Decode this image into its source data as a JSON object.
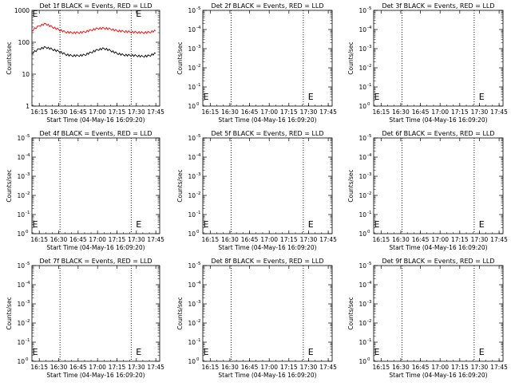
{
  "chart_data": [
    {
      "title": "Det 1f BLACK = Events, RED = LLD",
      "xlabel": "Start Time (04-May-16 16:09:20)",
      "ylabel": "Counts/sec",
      "xticks": [
        "16:15",
        "16:30",
        "16:45",
        "17:00",
        "17:15",
        "17:30",
        "17:45"
      ],
      "yticks": [
        "1",
        "10",
        "100",
        "1000"
      ],
      "ytick_style": "plain",
      "yscale": "log",
      "ylim": [
        1,
        1000
      ],
      "vlines": [
        "16:31",
        "17:26"
      ],
      "markers": [
        {
          "x": "16:09",
          "label": "E"
        },
        {
          "x": "17:29",
          "label": "E"
        }
      ],
      "marker_y": 1000,
      "type": "line",
      "series": [
        {
          "name": "LLD",
          "color": "#ff0000",
          "x": [
            "16:09",
            "16:15",
            "16:20",
            "16:25",
            "16:30",
            "16:35",
            "16:40",
            "16:45",
            "16:50",
            "16:55",
            "17:00",
            "17:05",
            "17:10",
            "17:15",
            "17:20",
            "17:25",
            "17:30",
            "17:35",
            "17:40",
            "17:45"
          ],
          "values": [
            230,
            330,
            380,
            300,
            250,
            210,
            200,
            200,
            210,
            240,
            270,
            275,
            260,
            230,
            220,
            210,
            205,
            200,
            205,
            230
          ]
        },
        {
          "name": "Events",
          "color": "#000000",
          "x": [
            "16:09",
            "16:15",
            "16:20",
            "16:25",
            "16:30",
            "16:35",
            "16:40",
            "16:45",
            "16:50",
            "16:55",
            "17:00",
            "17:05",
            "17:10",
            "17:15",
            "17:20",
            "17:25",
            "17:30",
            "17:35",
            "17:40",
            "17:45"
          ],
          "values": [
            45,
            62,
            70,
            60,
            52,
            42,
            38,
            38,
            40,
            48,
            58,
            64,
            55,
            45,
            40,
            39,
            38,
            36,
            38,
            45
          ]
        }
      ]
    },
    {
      "title": "Det 2f BLACK = Events, RED = LLD",
      "xlabel": "Start Time (04-May-16 16:09:20)",
      "ylabel": "Counts/sec",
      "xticks": [
        "16:15",
        "16:30",
        "16:45",
        "17:00",
        "17:15",
        "17:30",
        "17:45"
      ],
      "yticks": [
        "10",
        "10",
        "10",
        "10",
        "10",
        "10"
      ],
      "ytick_exp": [
        "0",
        "-1",
        "-2",
        "-3",
        "-4",
        "-5"
      ],
      "ytick_style": "exp",
      "vlines": [
        "16:31",
        "17:26"
      ],
      "markers": [
        {
          "x": "16:09",
          "label": "E"
        },
        {
          "x": "17:29",
          "label": "E"
        }
      ],
      "marker_y_frac": 0.1,
      "type": "line",
      "series": []
    },
    {
      "title": "Det 3f BLACK = Events, RED = LLD",
      "xlabel": "Start Time (04-May-16 16:09:20)",
      "ylabel": "Counts/sec",
      "xticks": [
        "16:15",
        "16:30",
        "16:45",
        "17:00",
        "17:15",
        "17:30",
        "17:45"
      ],
      "yticks": [
        "10",
        "10",
        "10",
        "10",
        "10",
        "10"
      ],
      "ytick_exp": [
        "0",
        "-1",
        "-2",
        "-3",
        "-4",
        "-5"
      ],
      "ytick_style": "exp",
      "vlines": [
        "16:31",
        "17:26"
      ],
      "markers": [
        {
          "x": "16:09",
          "label": "E"
        },
        {
          "x": "17:29",
          "label": "E"
        }
      ],
      "marker_y_frac": 0.1,
      "type": "line",
      "series": []
    },
    {
      "title": "Det 4f BLACK = Events, RED = LLD",
      "xlabel": "Start Time (04-May-16 16:09:20)",
      "ylabel": "Counts/sec",
      "xticks": [
        "16:15",
        "16:30",
        "16:45",
        "17:00",
        "17:15",
        "17:30",
        "17:45"
      ],
      "yticks": [
        "10",
        "10",
        "10",
        "10",
        "10",
        "10"
      ],
      "ytick_exp": [
        "0",
        "-1",
        "-2",
        "-3",
        "-4",
        "-5"
      ],
      "ytick_style": "exp",
      "vlines": [
        "16:31",
        "17:26"
      ],
      "markers": [
        {
          "x": "16:09",
          "label": "E"
        },
        {
          "x": "17:29",
          "label": "E"
        }
      ],
      "marker_y_frac": 0.1,
      "type": "line",
      "series": []
    },
    {
      "title": "Det 5f BLACK = Events, RED = LLD",
      "xlabel": "Start Time (04-May-16 16:09:20)",
      "ylabel": "Counts/sec",
      "xticks": [
        "16:15",
        "16:30",
        "16:45",
        "17:00",
        "17:15",
        "17:30",
        "17:45"
      ],
      "yticks": [
        "10",
        "10",
        "10",
        "10",
        "10",
        "10"
      ],
      "ytick_exp": [
        "0",
        "-1",
        "-2",
        "-3",
        "-4",
        "-5"
      ],
      "ytick_style": "exp",
      "vlines": [
        "16:31",
        "17:26"
      ],
      "markers": [
        {
          "x": "16:09",
          "label": "E"
        },
        {
          "x": "17:29",
          "label": "E"
        }
      ],
      "marker_y_frac": 0.1,
      "type": "line",
      "series": []
    },
    {
      "title": "Det 6f BLACK = Events, RED = LLD",
      "xlabel": "Start Time (04-May-16 16:09:20)",
      "ylabel": "Counts/sec",
      "xticks": [
        "16:15",
        "16:30",
        "16:45",
        "17:00",
        "17:15",
        "17:30",
        "17:45"
      ],
      "yticks": [
        "10",
        "10",
        "10",
        "10",
        "10",
        "10"
      ],
      "ytick_exp": [
        "0",
        "-1",
        "-2",
        "-3",
        "-4",
        "-5"
      ],
      "ytick_style": "exp",
      "vlines": [
        "16:31",
        "17:26"
      ],
      "markers": [
        {
          "x": "16:09",
          "label": "E"
        },
        {
          "x": "17:29",
          "label": "E"
        }
      ],
      "marker_y_frac": 0.1,
      "type": "line",
      "series": []
    },
    {
      "title": "Det 7f BLACK = Events, RED = LLD",
      "xlabel": "Start Time (04-May-16 16:09:20)",
      "ylabel": "Counts/sec",
      "xticks": [
        "16:15",
        "16:30",
        "16:45",
        "17:00",
        "17:15",
        "17:30",
        "17:45"
      ],
      "yticks": [
        "10",
        "10",
        "10",
        "10",
        "10",
        "10"
      ],
      "ytick_exp": [
        "0",
        "-1",
        "-2",
        "-3",
        "-4",
        "-5"
      ],
      "ytick_style": "exp",
      "vlines": [
        "16:31",
        "17:26"
      ],
      "markers": [
        {
          "x": "16:09",
          "label": "E"
        },
        {
          "x": "17:29",
          "label": "E"
        }
      ],
      "marker_y_frac": 0.1,
      "type": "line",
      "series": []
    },
    {
      "title": "Det 8f BLACK = Events, RED = LLD",
      "xlabel": "Start Time (04-May-16 16:09:20)",
      "ylabel": "Counts/sec",
      "xticks": [
        "16:15",
        "16:30",
        "16:45",
        "17:00",
        "17:15",
        "17:30",
        "17:45"
      ],
      "yticks": [
        "10",
        "10",
        "10",
        "10",
        "10",
        "10"
      ],
      "ytick_exp": [
        "0",
        "-1",
        "-2",
        "-3",
        "-4",
        "-5"
      ],
      "ytick_style": "exp",
      "vlines": [
        "16:31",
        "17:26"
      ],
      "markers": [
        {
          "x": "16:09",
          "label": "E"
        },
        {
          "x": "17:29",
          "label": "E"
        }
      ],
      "marker_y_frac": 0.1,
      "type": "line",
      "series": []
    },
    {
      "title": "Det 9f BLACK = Events, RED = LLD",
      "xlabel": "Start Time (04-May-16 16:09:20)",
      "ylabel": "Counts/sec",
      "xticks": [
        "16:15",
        "16:30",
        "16:45",
        "17:00",
        "17:15",
        "17:30",
        "17:45"
      ],
      "yticks": [
        "10",
        "10",
        "10",
        "10",
        "10",
        "10"
      ],
      "ytick_exp": [
        "0",
        "-1",
        "-2",
        "-3",
        "-4",
        "-5"
      ],
      "ytick_style": "exp",
      "vlines": [
        "16:31",
        "17:26"
      ],
      "markers": [
        {
          "x": "16:09",
          "label": "E"
        },
        {
          "x": "17:29",
          "label": "E"
        }
      ],
      "marker_y_frac": 0.1,
      "type": "line",
      "series": []
    }
  ]
}
